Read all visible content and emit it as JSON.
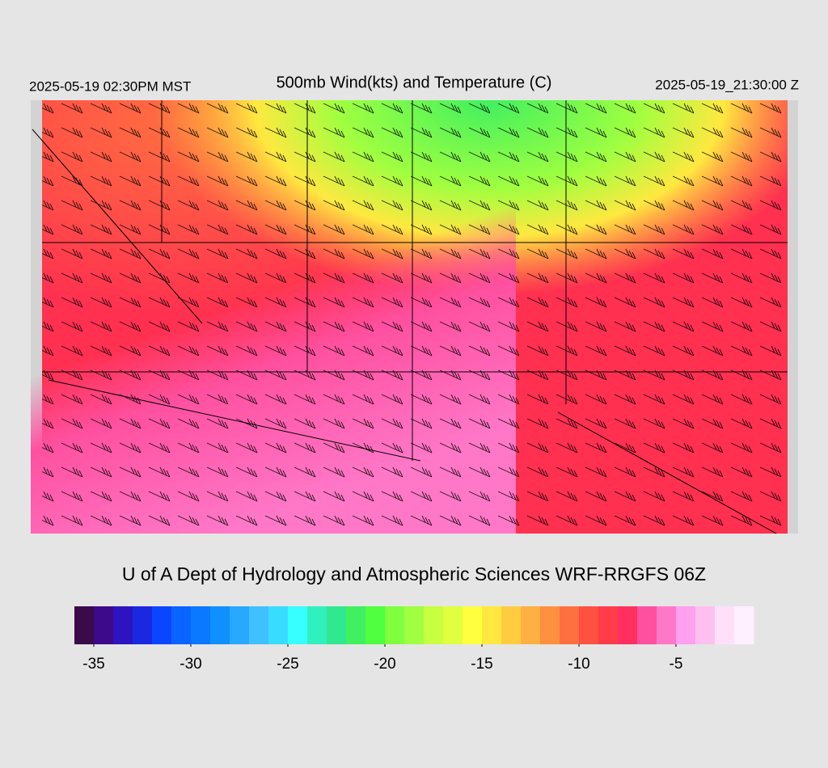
{
  "header": {
    "left": "2025-05-19 02:30PM MST",
    "title": "500mb Wind(kts) and Temperature (C)",
    "right": "2025-05-19_21:30:00 Z"
  },
  "credit": "U of A Dept of Hydrology and Atmospheric Sciences WRF-RRGFS 06Z",
  "colorbar": {
    "range": [
      -36,
      -1
    ],
    "colors": [
      "#3a0a4a",
      "#3d0a8c",
      "#2e14c0",
      "#1a28e0",
      "#0a46ff",
      "#0a64ff",
      "#0a78ff",
      "#1090ff",
      "#28a8ff",
      "#40c0ff",
      "#38dcff",
      "#38ffff",
      "#30f0c0",
      "#30e890",
      "#40f060",
      "#50ff40",
      "#80ff40",
      "#a0ff40",
      "#c8ff40",
      "#e0ff40",
      "#ffff40",
      "#ffe840",
      "#ffcc40",
      "#ffb040",
      "#ff9040",
      "#ff7040",
      "#ff5040",
      "#ff3c48",
      "#ff3060",
      "#ff50a0",
      "#ff78c8",
      "#ffa0f0",
      "#ffc0f0",
      "#ffe0f8",
      "#fff0ff"
    ],
    "ticks": [
      -35,
      -30,
      -25,
      -20,
      -15,
      -10,
      -5
    ]
  }
}
